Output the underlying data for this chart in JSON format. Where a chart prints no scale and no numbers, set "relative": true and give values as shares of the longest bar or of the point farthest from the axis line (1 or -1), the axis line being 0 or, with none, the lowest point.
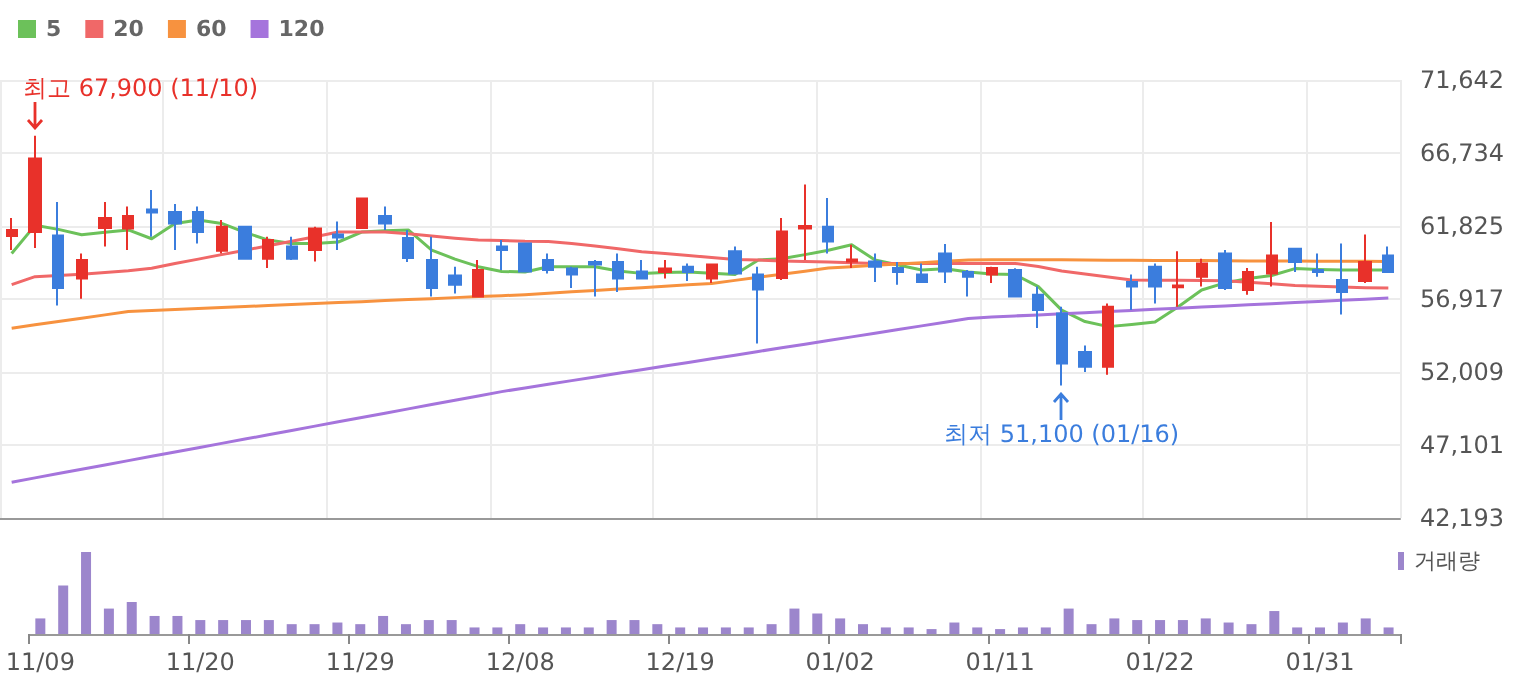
{
  "chart_data": [
    {
      "type": "candlestick",
      "ohlc": [
        [
          61150,
          62360,
          60210,
          61550
        ],
        [
          61420,
          67900,
          60340,
          66360
        ],
        [
          61190,
          63440,
          56480,
          57650
        ],
        [
          58290,
          59980,
          56940,
          59540
        ],
        [
          61690,
          63440,
          60440,
          62360
        ],
        [
          61650,
          63130,
          60210,
          62500
        ],
        [
          62940,
          64250,
          61110,
          62730
        ],
        [
          62770,
          63300,
          60210,
          62000
        ],
        [
          62770,
          63130,
          60650,
          61420
        ],
        [
          60170,
          62230,
          59980,
          61780
        ],
        [
          61780,
          61780,
          59630,
          59630
        ],
        [
          59630,
          61110,
          59000,
          60880
        ],
        [
          60440,
          61110,
          59540,
          59630
        ],
        [
          60210,
          61780,
          59440,
          61650
        ],
        [
          61250,
          62130,
          60210,
          61060
        ],
        [
          61690,
          63670,
          61690,
          63670
        ],
        [
          62500,
          63130,
          61560,
          62000
        ],
        [
          61020,
          61560,
          59400,
          59670
        ],
        [
          59540,
          61110,
          57080,
          57650
        ],
        [
          58500,
          59090,
          57290,
          57880
        ],
        [
          57080,
          59540,
          57080,
          58870
        ],
        [
          60440,
          60880,
          58870,
          60210
        ],
        [
          60650,
          60650,
          58770,
          58770
        ],
        [
          59540,
          59980,
          58640,
          58870
        ],
        [
          58960,
          59090,
          57650,
          58560
        ],
        [
          59400,
          59540,
          57080,
          59230
        ],
        [
          59400,
          59980,
          57390,
          58290
        ],
        [
          58770,
          59540,
          58290,
          58290
        ],
        [
          58730,
          59540,
          58290,
          58960
        ],
        [
          59090,
          59310,
          58130,
          58730
        ],
        [
          58290,
          59230,
          58000,
          59230
        ],
        [
          60120,
          60440,
          58640,
          58640
        ],
        [
          58560,
          59090,
          53930,
          57560
        ],
        [
          58330,
          62360,
          58190,
          61460
        ],
        [
          61650,
          64610,
          59540,
          61820
        ],
        [
          61780,
          63710,
          59980,
          60790
        ],
        [
          59440,
          60570,
          59000,
          59580
        ],
        [
          59440,
          59980,
          58060,
          59090
        ],
        [
          59000,
          59400,
          57880,
          58730
        ],
        [
          58560,
          59310,
          58060,
          58060
        ],
        [
          59980,
          60610,
          58000,
          58770
        ],
        [
          58730,
          58870,
          57080,
          58420
        ],
        [
          58560,
          59090,
          58000,
          59000
        ],
        [
          58870,
          58990,
          57080,
          57080
        ],
        [
          57210,
          57750,
          54960,
          56170
        ],
        [
          55950,
          56400,
          51100,
          52580
        ],
        [
          53350,
          53790,
          52010,
          52370
        ],
        [
          52370,
          56620,
          51830,
          56400
        ],
        [
          58060,
          58560,
          56170,
          57750
        ],
        [
          59090,
          59310,
          56620,
          57750
        ],
        [
          57700,
          60120,
          56400,
          57830
        ],
        [
          58420,
          59630,
          57750,
          59310
        ],
        [
          59980,
          60210,
          57520,
          57650
        ],
        [
          57520,
          59000,
          57210,
          58730
        ],
        [
          58640,
          62090,
          57750,
          59850
        ],
        [
          60300,
          60300,
          58730,
          59400
        ],
        [
          58870,
          59980,
          58420,
          58730
        ],
        [
          58190,
          60650,
          55870,
          57390
        ],
        [
          58130,
          61250,
          58000,
          59400
        ],
        [
          59850,
          60440,
          58730,
          58730
        ]
      ],
      "colors": [
        "#e8312a",
        "#e8312a",
        "#3b7ddd",
        "#e8312a",
        "#e8312a",
        "#e8312a",
        "#3b7ddd",
        "#3b7ddd",
        "#3b7ddd",
        "#e8312a",
        "#3b7ddd",
        "#e8312a",
        "#3b7ddd",
        "#e8312a",
        "#3b7ddd",
        "#e8312a",
        "#3b7ddd",
        "#3b7ddd",
        "#3b7ddd",
        "#3b7ddd",
        "#e8312a",
        "#3b7ddd",
        "#3b7ddd",
        "#3b7ddd",
        "#3b7ddd",
        "#3b7ddd",
        "#3b7ddd",
        "#3b7ddd",
        "#e8312a",
        "#3b7ddd",
        "#e8312a",
        "#3b7ddd",
        "#3b7ddd",
        "#e8312a",
        "#e8312a",
        "#3b7ddd",
        "#e8312a",
        "#3b7ddd",
        "#3b7ddd",
        "#3b7ddd",
        "#3b7ddd",
        "#3b7ddd",
        "#e8312a",
        "#3b7ddd",
        "#3b7ddd",
        "#3b7ddd",
        "#3b7ddd",
        "#e8312a",
        "#3b7ddd",
        "#3b7ddd",
        "#e8312a",
        "#e8312a",
        "#3b7ddd",
        "#e8312a",
        "#e8312a",
        "#3b7ddd",
        "#3b7ddd",
        "#3b7ddd",
        "#e8312a",
        "#3b7ddd"
      ],
      "series": [
        {
          "type": "line",
          "name": "5",
          "color": "#6cc15a",
          "values": [
            59980,
            61870,
            61600,
            61240,
            61400,
            61560,
            60970,
            62000,
            62230,
            62000,
            61400,
            60880,
            60650,
            60650,
            60750,
            61420,
            61500,
            61560,
            60210,
            59600,
            59090,
            58770,
            58730,
            59090,
            59090,
            59090,
            58800,
            58640,
            58700,
            58730,
            58650,
            58560,
            59540,
            59630,
            59900,
            60200,
            60570,
            59540,
            59200,
            58870,
            58950,
            58730,
            58600,
            58560,
            57750,
            56170,
            55400,
            55060,
            55200,
            55370,
            56400,
            57520,
            58000,
            58300,
            58500,
            58960,
            58900,
            58870,
            58870,
            58870
          ]
        },
        {
          "type": "line",
          "name": "20",
          "color": "#f06868",
          "values": [
            57880,
            58420,
            58500,
            58580,
            58700,
            58820,
            58980,
            59310,
            59600,
            59900,
            60200,
            60500,
            60800,
            61100,
            61420,
            61420,
            61420,
            61300,
            61150,
            61000,
            60880,
            60850,
            60800,
            60790,
            60650,
            60480,
            60300,
            60100,
            59980,
            59850,
            59700,
            59580,
            59540,
            59480,
            59440,
            59400,
            59350,
            59310,
            59310,
            59310,
            59310,
            59310,
            59310,
            59310,
            59100,
            58800,
            58600,
            58400,
            58190,
            58180,
            58170,
            58160,
            58140,
            58050,
            57950,
            57830,
            57770,
            57720,
            57680,
            57650
          ]
        },
        {
          "type": "line",
          "name": "60",
          "color": "#f7923f",
          "values": [
            54950,
            55180,
            55400,
            55630,
            55850,
            56080,
            56150,
            56210,
            56280,
            56350,
            56410,
            56480,
            56540,
            56610,
            56680,
            56740,
            56810,
            56880,
            56940,
            57010,
            57080,
            57140,
            57210,
            57300,
            57400,
            57490,
            57590,
            57680,
            57770,
            57870,
            57960,
            58170,
            58380,
            58580,
            58790,
            59000,
            59090,
            59180,
            59270,
            59360,
            59450,
            59540,
            59560,
            59560,
            59560,
            59550,
            59540,
            59530,
            59520,
            59510,
            59500,
            59500,
            59490,
            59480,
            59470,
            59470,
            59460,
            59450,
            59450,
            59440
          ]
        },
        {
          "type": "line",
          "name": "120",
          "color": "#a574dc",
          "values": [
            44600,
            44890,
            45180,
            45470,
            45760,
            46050,
            46340,
            46630,
            46920,
            47210,
            47500,
            47790,
            48080,
            48370,
            48660,
            48950,
            49240,
            49530,
            49820,
            50110,
            50400,
            50690,
            50940,
            51180,
            51430,
            51670,
            51920,
            52160,
            52410,
            52650,
            52900,
            53140,
            53390,
            53640,
            53880,
            54130,
            54370,
            54620,
            54860,
            55110,
            55350,
            55600,
            55700,
            55780,
            55850,
            55930,
            56000,
            56080,
            56150,
            56230,
            56300,
            56380,
            56450,
            56530,
            56600,
            56680,
            56750,
            56830,
            56900,
            56980
          ]
        }
      ],
      "ylim": [
        42193,
        71642
      ],
      "yticks": [
        {
          "value": 42193,
          "label": "42,193"
        },
        {
          "value": 47101,
          "label": "47,101"
        },
        {
          "value": 52009,
          "label": "52,009"
        },
        {
          "value": 56917,
          "label": "56,917"
        },
        {
          "value": 61825,
          "label": "61,825"
        },
        {
          "value": 66734,
          "label": "66,734"
        },
        {
          "value": 71642,
          "label": "71,642"
        }
      ],
      "grid": true,
      "legend": "top left",
      "marker": "none",
      "tick_labels": "y",
      "annotations": [
        "최고 67,900 (11/10)",
        "최저 51,100 (01/16)"
      ]
    },
    {
      "type": "bar",
      "relative": true,
      "legend": "top right",
      "tick_labels": "x",
      "categories": [
        "11/09",
        null,
        null,
        null,
        null,
        null,
        null,
        "11/20",
        null,
        null,
        null,
        null,
        null,
        null,
        "11/29",
        null,
        null,
        null,
        null,
        null,
        null,
        "12/08",
        null,
        null,
        null,
        null,
        null,
        null,
        "12/19",
        null,
        null,
        null,
        null,
        null,
        null,
        "01/02",
        null,
        null,
        null,
        null,
        null,
        null,
        "01/11",
        null,
        null,
        null,
        null,
        null,
        null,
        "01/22",
        null,
        null,
        null,
        null,
        null,
        null,
        "01/31",
        null,
        null,
        null
      ],
      "series": [
        {
          "name": "거래량",
          "color": "#9c86cc",
          "values": [
            0.19,
            0.59,
            1,
            0.31,
            0.39,
            0.22,
            0.22,
            0.17,
            0.17,
            0.17,
            0.17,
            0.12,
            0.12,
            0.14,
            0.12,
            0.22,
            0.12,
            0.17,
            0.17,
            0.08,
            0.08,
            0.12,
            0.08,
            0.08,
            0.08,
            0.17,
            0.17,
            0.12,
            0.08,
            0.08,
            0.08,
            0.08,
            0.12,
            0.31,
            0.25,
            0.19,
            0.12,
            0.08,
            0.08,
            0.06,
            0.14,
            0.08,
            0.06,
            0.08,
            0.08,
            0.31,
            0.12,
            0.19,
            0.17,
            0.17,
            0.17,
            0.19,
            0.14,
            0.12,
            0.28,
            0.08,
            0.08,
            0.14,
            0.19,
            0.08
          ]
        }
      ]
    }
  ]
}
